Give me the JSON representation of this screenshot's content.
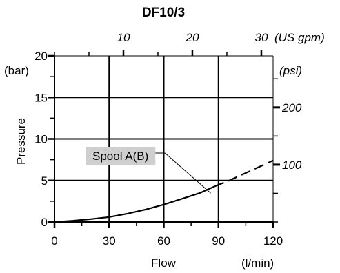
{
  "chart_data": {
    "type": "line",
    "title": "DF10/3",
    "xlabel": "Flow",
    "xunit": "(l/min)",
    "ylabel": "Pressure",
    "yunit": "(bar)",
    "xlim": [
      0,
      120
    ],
    "ylim": [
      0,
      20
    ],
    "x_ticks": [
      0,
      30,
      60,
      90,
      120
    ],
    "y_ticks": [
      0,
      5,
      10,
      15,
      20
    ],
    "grid": true,
    "top_axis": {
      "unit": "(US gpm)",
      "ticks": [
        10,
        20,
        30
      ],
      "lpm_per_unit": 3.785
    },
    "right_axis": {
      "unit": "(psi)",
      "ticks": [
        100,
        200
      ],
      "psi_per_bar": 14.5038
    },
    "series": [
      {
        "name": "Spool A(B)",
        "solid": {
          "x": [
            0,
            10,
            20,
            30,
            40,
            50,
            60,
            70,
            80,
            88
          ],
          "y": [
            0.0,
            0.15,
            0.35,
            0.6,
            1.0,
            1.5,
            2.1,
            2.8,
            3.5,
            4.3
          ]
        },
        "dashed": {
          "x": [
            88,
            96,
            104,
            112,
            120
          ],
          "y": [
            4.3,
            5.0,
            5.8,
            6.6,
            7.4
          ]
        }
      }
    ],
    "annotation": {
      "text": "Spool A(B)",
      "points_to": [
        82,
        3.8
      ]
    }
  }
}
